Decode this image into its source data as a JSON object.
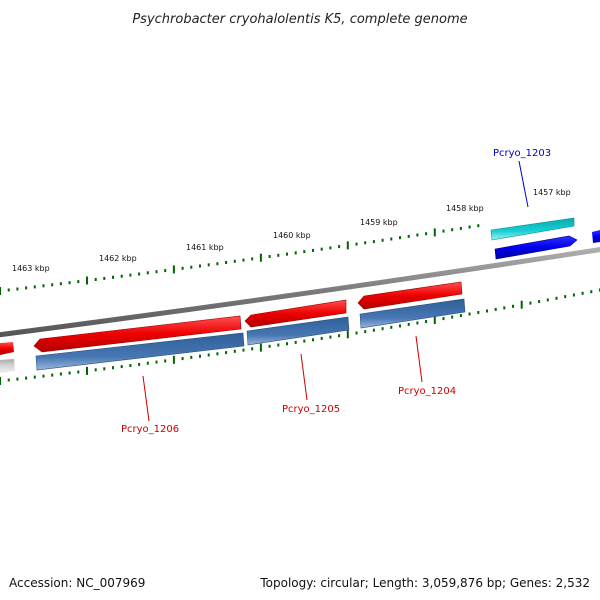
{
  "title": "Psychrobacter cryohalolentis K5, complete genome",
  "footer": {
    "accession": "Accession: NC_007969",
    "summary": "Topology: circular; Length: 3,059,876 bp; Genes: 2,532"
  },
  "tick_labels": [
    "1463 kbp",
    "1462 kbp",
    "1461 kbp",
    "1460 kbp",
    "1459 kbp",
    "1458 kbp",
    "1457 kbp"
  ],
  "gene_labels": [
    {
      "name": "Pcryo_1203",
      "color": "#0000cc"
    },
    {
      "name": "Pcryo_1204",
      "color": "#cc0000"
    },
    {
      "name": "Pcryo_1205",
      "color": "#cc0000"
    },
    {
      "name": "Pcryo_1206",
      "color": "#cc0000"
    }
  ],
  "colors": {
    "backbone": "#808080",
    "tick": "#006400",
    "cds_forward": "#0000ee",
    "gene_forward": "#00c4c8",
    "cds_reverse": "#ee0000",
    "gene_reverse": "#3f6fa8",
    "gene_faded": "#c8c8c8"
  }
}
